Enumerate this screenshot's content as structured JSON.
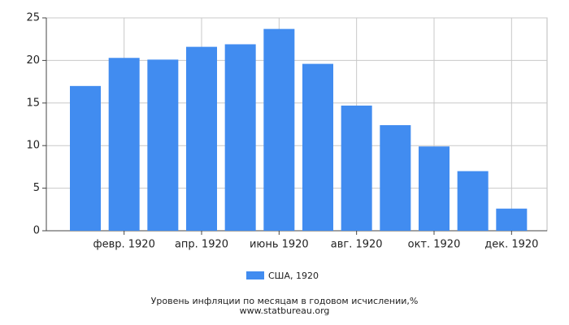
{
  "chart_data": {
    "type": "bar",
    "categories": [
      null,
      "февр. 1920",
      null,
      "апр. 1920",
      null,
      "июнь 1920",
      null,
      "авг. 1920",
      null,
      "окт. 1920",
      null,
      "дек. 1920"
    ],
    "series": [
      {
        "name": "США, 1920",
        "color": "#418cf0",
        "values": [
          17.0,
          20.3,
          20.1,
          21.6,
          21.9,
          23.7,
          19.6,
          14.7,
          12.4,
          9.9,
          7.0,
          2.6
        ]
      }
    ],
    "ylim": [
      0,
      25
    ],
    "yticks": [
      0,
      5,
      10,
      15,
      20,
      25
    ],
    "grid": true,
    "legend": "bottom",
    "caption": "Уровень инфляции по месяцам в годовом исчислении,%",
    "source": "www.statbureau.org"
  }
}
